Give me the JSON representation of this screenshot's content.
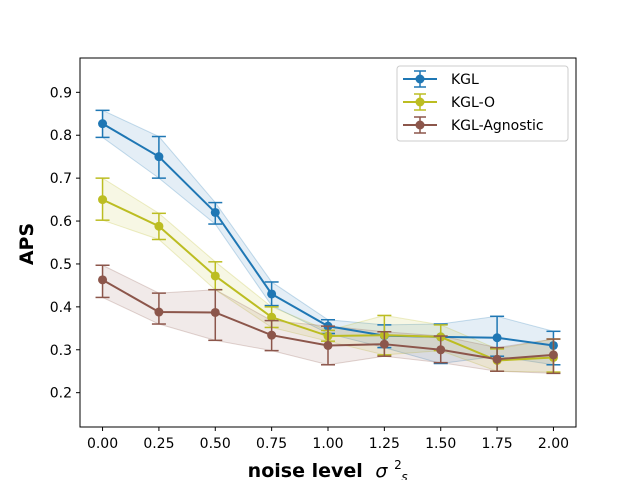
{
  "chart_data": {
    "type": "line",
    "title": "",
    "xlabel": "noise level",
    "xlabel_symbol": "σ",
    "xlabel_sup": "2",
    "xlabel_sub": "s",
    "ylabel": "APS",
    "x": [
      0.0,
      0.25,
      0.5,
      0.75,
      1.0,
      1.25,
      1.5,
      1.75,
      2.0
    ],
    "xlim": [
      -0.1,
      2.1
    ],
    "ylim": [
      0.12,
      0.98
    ],
    "xticks": [
      "0.00",
      "0.25",
      "0.50",
      "0.75",
      "1.00",
      "1.25",
      "1.50",
      "1.75",
      "2.00"
    ],
    "yticks": [
      "0.2",
      "0.3",
      "0.4",
      "0.5",
      "0.6",
      "0.7",
      "0.8",
      "0.9"
    ],
    "ytick_values": [
      0.2,
      0.3,
      0.4,
      0.5,
      0.6,
      0.7,
      0.8,
      0.9
    ],
    "legend_position": "top-right",
    "series": [
      {
        "name": "KGL",
        "color": "#1f77b4",
        "values": [
          0.827,
          0.75,
          0.62,
          0.43,
          0.355,
          0.333,
          0.33,
          0.328,
          0.31
        ],
        "err_low": [
          0.795,
          0.7,
          0.593,
          0.403,
          0.338,
          0.305,
          0.268,
          0.285,
          0.265
        ],
        "err_high": [
          0.858,
          0.797,
          0.643,
          0.458,
          0.37,
          0.358,
          0.36,
          0.378,
          0.343
        ]
      },
      {
        "name": "KGL-O",
        "color": "#bcbd22",
        "values": [
          0.65,
          0.588,
          0.472,
          0.376,
          0.332,
          0.334,
          0.33,
          0.275,
          0.282
        ],
        "err_low": [
          0.602,
          0.557,
          0.44,
          0.352,
          0.32,
          0.288,
          0.298,
          0.25,
          0.248
        ],
        "err_high": [
          0.7,
          0.618,
          0.505,
          0.4,
          0.345,
          0.38,
          0.358,
          0.302,
          0.325
        ]
      },
      {
        "name": "KGL-Agnostic",
        "color": "#8c564b",
        "values": [
          0.463,
          0.388,
          0.387,
          0.334,
          0.31,
          0.313,
          0.3,
          0.278,
          0.288
        ],
        "err_low": [
          0.422,
          0.36,
          0.322,
          0.298,
          0.265,
          0.285,
          0.27,
          0.25,
          0.245
        ],
        "err_high": [
          0.497,
          0.432,
          0.44,
          0.368,
          0.355,
          0.342,
          0.332,
          0.305,
          0.325
        ]
      }
    ]
  }
}
